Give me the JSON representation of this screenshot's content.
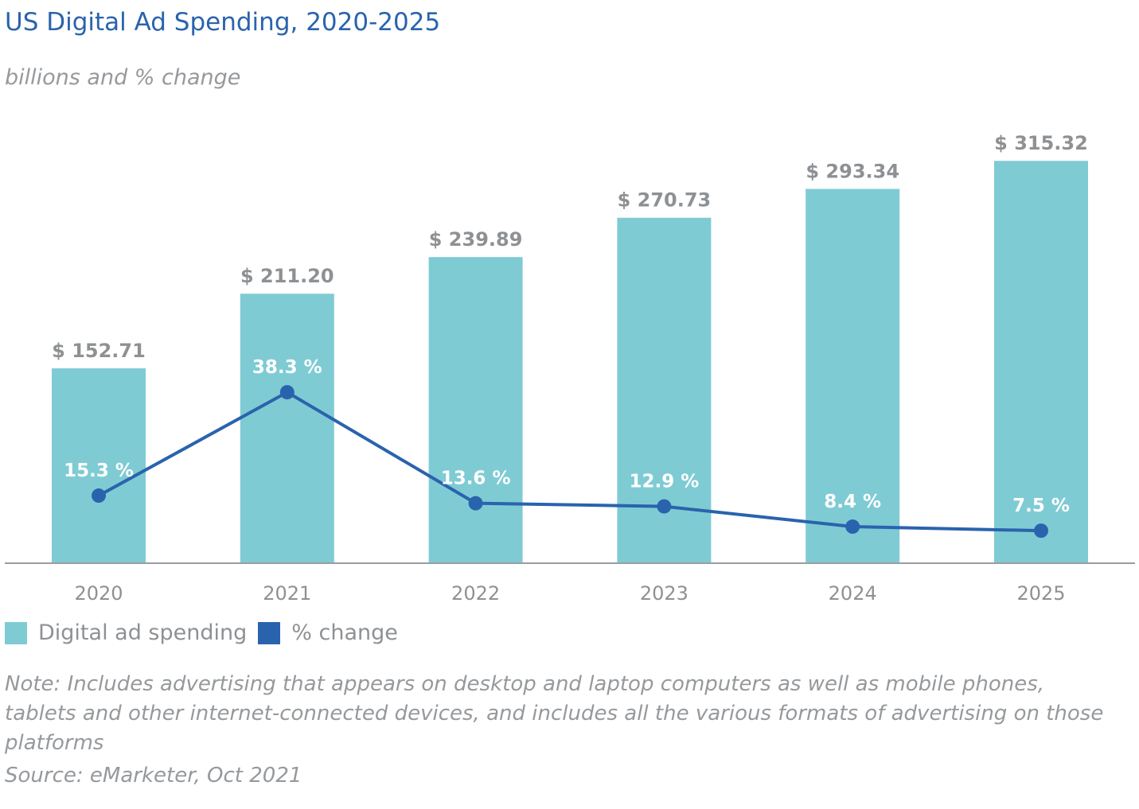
{
  "header": {
    "title": "US Digital Ad Spending, 2020-2025",
    "subtitle": "billions and % change"
  },
  "colors": {
    "bar": "#7fcbd4",
    "line": "#2a63ad",
    "axis": "#9a9da0",
    "value_label": "#8e9194",
    "pct_label": "#ffffff"
  },
  "legend": {
    "items": [
      {
        "label": "Digital ad spending",
        "color": "#7fcbd4"
      },
      {
        "label": "% change",
        "color": "#2a63ad"
      }
    ]
  },
  "footer": {
    "note": "Note: Includes advertising that appears on desktop and laptop computers as well as mobile phones, tablets and other internet-connected devices, and includes all the various formats of advertising on those platforms",
    "source": "Source: eMarketer, Oct 2021"
  },
  "chart_data": {
    "type": "bar",
    "title": "US Digital Ad Spending, 2020-2025",
    "subtitle": "billions and % change",
    "xlabel": "",
    "ylabel": "",
    "categories": [
      "2020",
      "2021",
      "2022",
      "2023",
      "2024",
      "2025"
    ],
    "series": [
      {
        "name": "Digital ad spending",
        "type": "bar",
        "axis": "primary",
        "values": [
          152.71,
          211.2,
          239.89,
          270.73,
          293.34,
          315.32
        ],
        "labels": [
          "$ 152.71",
          "$ 211.20",
          "$ 239.89",
          "$ 270.73",
          "$ 293.34",
          "$ 315.32"
        ]
      },
      {
        "name": "% change",
        "type": "line",
        "axis": "secondary",
        "values": [
          15.3,
          38.3,
          13.6,
          12.9,
          8.4,
          7.5
        ],
        "labels": [
          "15.3 %",
          "38.3 %",
          "13.6 %",
          "12.9 %",
          "8.4 %",
          "7.5 %"
        ]
      }
    ],
    "ylim": [
      0,
      340
    ],
    "y2lim": [
      0,
      100
    ],
    "grid": false,
    "legend_position": "bottom-left"
  }
}
